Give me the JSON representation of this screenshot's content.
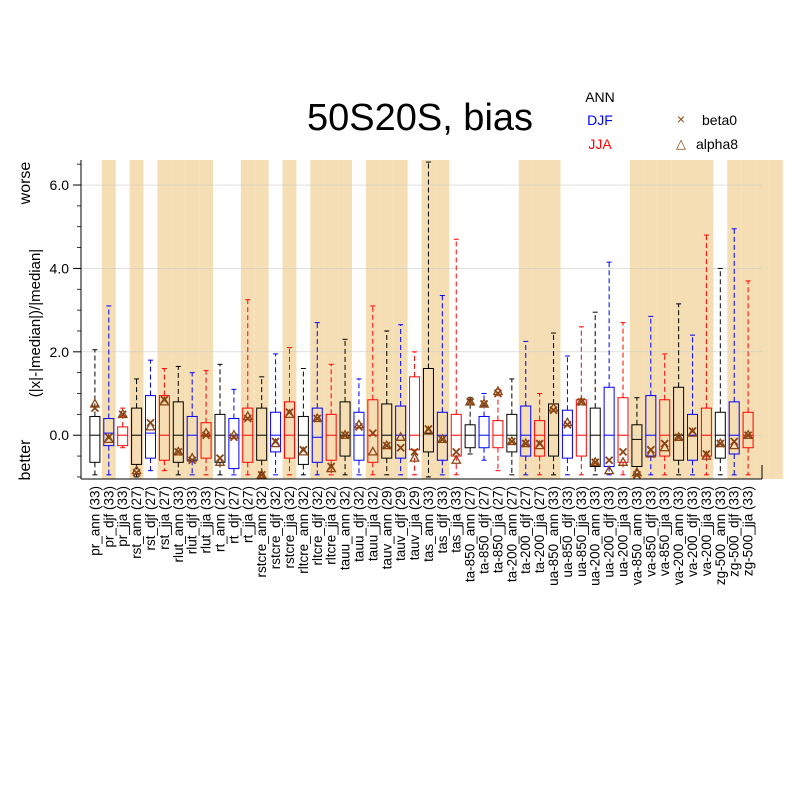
{
  "chart_data": {
    "type": "boxplot",
    "title": "50S20S, bias",
    "ylabel": "(|x|-|median|)/|median|",
    "ylabel_top": "worse",
    "ylabel_bottom": "better",
    "ylim": [
      -1.05,
      6.6
    ],
    "yticks": [
      0.0,
      2.0,
      4.0,
      6.0
    ],
    "ytick_labels": [
      "0.0",
      "2.0",
      "4.0",
      "6.0"
    ],
    "legend": {
      "seasons": [
        {
          "label": "ANN",
          "color": "#000000"
        },
        {
          "label": "DJF",
          "color": "#0000ff"
        },
        {
          "label": "JJA",
          "color": "#ff0000"
        }
      ],
      "markers": [
        {
          "label": "beta0",
          "symbol": "×",
          "color": "#8b4513"
        },
        {
          "label": "alpha8",
          "symbol": "△",
          "color": "#8b4513"
        }
      ]
    },
    "colors": {
      "ANN": "#000000",
      "DJF": "#0000ff",
      "JJA": "#ff0000",
      "shade": "#f5deb3",
      "marker": "#8b4513"
    },
    "shaded_categories": [
      1,
      3,
      5,
      6,
      7,
      8,
      11,
      12,
      14,
      16,
      17,
      18,
      20,
      21,
      22,
      24,
      25,
      31,
      32,
      33,
      39,
      40,
      41,
      42,
      43,
      44,
      46,
      47,
      48,
      49
    ],
    "categories": [
      "pr_ann (33)",
      "pr_djf (33)",
      "pr_jja (33)",
      "rst_ann (27)",
      "rst_djf (27)",
      "rst_jja (27)",
      "rlut_ann (33)",
      "rlut_djf (33)",
      "rlut_jja (33)",
      "rt_ann (27)",
      "rt_djf (27)",
      "rt_jja (27)",
      "rstcre_ann (32)",
      "rstcre_djf (32)",
      "rstcre_jja (32)",
      "rltcre_ann (32)",
      "rltcre_djf (32)",
      "rltcre_jja (32)",
      "tauu_ann (32)",
      "tauu_djf (32)",
      "tauu_jja (32)",
      "tauv_ann (29)",
      "tauv_djf (29)",
      "tauv_jja (29)",
      "tas_ann (33)",
      "tas_djf (33)",
      "tas_jja (33)",
      "ta-850_ann (27)",
      "ta-850_djf (27)",
      "ta-850_jja (27)",
      "ta-200_ann (27)",
      "ta-200_djf (27)",
      "ta-200_jja (27)",
      "ua-850_ann (33)",
      "ua-850_djf (33)",
      "ua-850_jja (33)",
      "ua-200_ann (33)",
      "ua-200_djf (33)",
      "ua-200_jja (33)",
      "va-850_ann (33)",
      "va-850_djf (33)",
      "va-850_jja (33)",
      "va-200_ann (33)",
      "va-200_djf (33)",
      "va-200_jja (33)",
      "zg-500_ann (33)",
      "zg-500_djf (33)",
      "zg-500_jja (33)"
    ],
    "series": [
      {
        "season": "ANN",
        "wlo": -0.95,
        "q1": -0.65,
        "med": 0.0,
        "q3": 0.45,
        "whi": 2.05,
        "beta0": 0.65,
        "alpha8": 0.75
      },
      {
        "season": "DJF",
        "wlo": -0.95,
        "q1": -0.25,
        "med": 0.05,
        "q3": 0.4,
        "whi": 3.1,
        "beta0": -0.05,
        "alpha8": -0.1
      },
      {
        "season": "JJA",
        "wlo": -0.3,
        "q1": -0.25,
        "med": 0.0,
        "q3": 0.2,
        "whi": 0.65,
        "beta0": 0.5,
        "alpha8": 0.5
      },
      {
        "season": "ANN",
        "wlo": -1.0,
        "q1": -0.7,
        "med": 0.0,
        "q3": 0.65,
        "whi": 1.35,
        "beta0": -0.9,
        "alpha8": -0.85
      },
      {
        "season": "DJF",
        "wlo": -0.85,
        "q1": -0.55,
        "med": 0.05,
        "q3": 0.95,
        "whi": 1.8,
        "beta0": 0.3,
        "alpha8": 0.2
      },
      {
        "season": "JJA",
        "wlo": -0.85,
        "q1": -0.6,
        "med": 0.0,
        "q3": 0.95,
        "whi": 1.6,
        "beta0": 0.85,
        "alpha8": 0.8
      },
      {
        "season": "ANN",
        "wlo": -0.95,
        "q1": -0.65,
        "med": 0.0,
        "q3": 0.8,
        "whi": 1.65,
        "beta0": -0.4,
        "alpha8": -0.4
      },
      {
        "season": "DJF",
        "wlo": -0.95,
        "q1": -0.6,
        "med": 0.0,
        "q3": 0.45,
        "whi": 1.5,
        "beta0": -0.6,
        "alpha8": -0.55
      },
      {
        "season": "JJA",
        "wlo": -0.95,
        "q1": -0.55,
        "med": 0.0,
        "q3": 0.3,
        "whi": 1.55,
        "beta0": 0.0,
        "alpha8": 0.05
      },
      {
        "season": "ANN",
        "wlo": -0.95,
        "q1": -0.65,
        "med": 0.0,
        "q3": 0.5,
        "whi": 1.7,
        "beta0": -0.55,
        "alpha8": -0.65
      },
      {
        "season": "DJF",
        "wlo": -0.95,
        "q1": -0.8,
        "med": 0.0,
        "q3": 0.4,
        "whi": 1.1,
        "beta0": -0.05,
        "alpha8": 0.0
      },
      {
        "season": "JJA",
        "wlo": -0.95,
        "q1": -0.65,
        "med": 0.0,
        "q3": 0.65,
        "whi": 3.25,
        "beta0": 0.4,
        "alpha8": 0.45
      },
      {
        "season": "ANN",
        "wlo": -0.95,
        "q1": -0.6,
        "med": 0.0,
        "q3": 0.65,
        "whi": 1.4,
        "beta0": -0.95,
        "alpha8": -0.95
      },
      {
        "season": "DJF",
        "wlo": -0.95,
        "q1": -0.4,
        "med": 0.0,
        "q3": 0.55,
        "whi": 1.95,
        "beta0": -0.15,
        "alpha8": -0.2
      },
      {
        "season": "JJA",
        "wlo": -0.95,
        "q1": -0.55,
        "med": 0.0,
        "q3": 0.8,
        "whi": 2.1,
        "beta0": 0.55,
        "alpha8": 0.5
      },
      {
        "season": "ANN",
        "wlo": -0.95,
        "q1": -0.7,
        "med": 0.0,
        "q3": 0.45,
        "whi": 1.6,
        "beta0": -0.35,
        "alpha8": -0.4
      },
      {
        "season": "DJF",
        "wlo": -0.95,
        "q1": -0.65,
        "med": -0.05,
        "q3": 0.65,
        "whi": 2.7,
        "beta0": 0.4,
        "alpha8": 0.4
      },
      {
        "season": "JJA",
        "wlo": -0.95,
        "q1": -0.6,
        "med": 0.0,
        "q3": 0.5,
        "whi": 1.7,
        "beta0": -0.75,
        "alpha8": -0.8
      },
      {
        "season": "ANN",
        "wlo": -0.95,
        "q1": -0.5,
        "med": 0.0,
        "q3": 0.8,
        "whi": 2.3,
        "beta0": 0.0,
        "alpha8": 0.0
      },
      {
        "season": "DJF",
        "wlo": -0.95,
        "q1": -0.6,
        "med": 0.0,
        "q3": 0.55,
        "whi": 1.35,
        "beta0": 0.2,
        "alpha8": 0.25
      },
      {
        "season": "JJA",
        "wlo": -0.95,
        "q1": -0.65,
        "med": 0.0,
        "q3": 0.85,
        "whi": 3.1,
        "beta0": 0.05,
        "alpha8": -0.4
      },
      {
        "season": "ANN",
        "wlo": -0.95,
        "q1": -0.55,
        "med": 0.0,
        "q3": 0.75,
        "whi": 2.5,
        "beta0": -0.25,
        "alpha8": -0.25
      },
      {
        "season": "DJF",
        "wlo": -0.95,
        "q1": -0.55,
        "med": 0.0,
        "q3": 0.7,
        "whi": 2.65,
        "beta0": -0.3,
        "alpha8": -0.05
      },
      {
        "season": "JJA",
        "wlo": -0.95,
        "q1": -0.35,
        "med": 0.0,
        "q3": 1.4,
        "whi": 2.0,
        "beta0": -0.4,
        "alpha8": -0.55
      },
      {
        "season": "ANN",
        "wlo": -1.0,
        "q1": -0.4,
        "med": 0.05,
        "q3": 1.6,
        "whi": 6.55,
        "beta0": 0.15,
        "alpha8": 0.1
      },
      {
        "season": "DJF",
        "wlo": -0.95,
        "q1": -0.6,
        "med": 0.0,
        "q3": 0.55,
        "whi": 3.35,
        "beta0": -0.1,
        "alpha8": -0.1
      },
      {
        "season": "JJA",
        "wlo": -0.95,
        "q1": -0.5,
        "med": 0.0,
        "q3": 0.5,
        "whi": 4.7,
        "beta0": -0.4,
        "alpha8": -0.6
      },
      {
        "season": "ANN",
        "wlo": -0.45,
        "q1": -0.3,
        "med": 0.0,
        "q3": 0.25,
        "whi": 0.9,
        "beta0": 0.8,
        "alpha8": 0.8
      },
      {
        "season": "DJF",
        "wlo": -0.6,
        "q1": -0.3,
        "med": 0.0,
        "q3": 0.45,
        "whi": 1.0,
        "beta0": 0.75,
        "alpha8": 0.75
      },
      {
        "season": "JJA",
        "wlo": -0.85,
        "q1": -0.3,
        "med": 0.0,
        "q3": 0.35,
        "whi": 1.1,
        "beta0": 1.0,
        "alpha8": 1.05
      },
      {
        "season": "ANN",
        "wlo": -0.95,
        "q1": -0.4,
        "med": 0.0,
        "q3": 0.5,
        "whi": 1.35,
        "beta0": -0.15,
        "alpha8": -0.15
      },
      {
        "season": "DJF",
        "wlo": -0.95,
        "q1": -0.5,
        "med": 0.0,
        "q3": 0.7,
        "whi": 2.25,
        "beta0": -0.2,
        "alpha8": -0.2
      },
      {
        "season": "JJA",
        "wlo": -0.95,
        "q1": -0.5,
        "med": 0.0,
        "q3": 0.35,
        "whi": 1.0,
        "beta0": -0.2,
        "alpha8": -0.25
      },
      {
        "season": "ANN",
        "wlo": -0.95,
        "q1": -0.5,
        "med": 0.0,
        "q3": 0.75,
        "whi": 2.45,
        "beta0": 0.6,
        "alpha8": 0.65
      },
      {
        "season": "DJF",
        "wlo": -0.95,
        "q1": -0.55,
        "med": 0.0,
        "q3": 0.6,
        "whi": 1.9,
        "beta0": 0.25,
        "alpha8": 0.3
      },
      {
        "season": "JJA",
        "wlo": -0.95,
        "q1": -0.5,
        "med": 0.0,
        "q3": 0.85,
        "whi": 2.6,
        "beta0": 0.8,
        "alpha8": 0.8
      },
      {
        "season": "ANN",
        "wlo": -0.95,
        "q1": -0.75,
        "med": 0.0,
        "q3": 0.65,
        "whi": 2.95,
        "beta0": -0.65,
        "alpha8": -0.65
      },
      {
        "season": "DJF",
        "wlo": -0.95,
        "q1": -0.75,
        "med": 0.0,
        "q3": 1.15,
        "whi": 4.15,
        "beta0": -0.6,
        "alpha8": -0.85
      },
      {
        "season": "JJA",
        "wlo": -0.95,
        "q1": -0.65,
        "med": 0.0,
        "q3": 0.9,
        "whi": 2.7,
        "beta0": -0.4,
        "alpha8": -0.65
      },
      {
        "season": "ANN",
        "wlo": -0.95,
        "q1": -0.75,
        "med": -0.1,
        "q3": 0.25,
        "whi": 0.9,
        "beta0": -0.95,
        "alpha8": -0.9
      },
      {
        "season": "DJF",
        "wlo": -0.95,
        "q1": -0.5,
        "med": 0.0,
        "q3": 0.95,
        "whi": 2.85,
        "beta0": -0.35,
        "alpha8": -0.45
      },
      {
        "season": "JJA",
        "wlo": -0.95,
        "q1": -0.5,
        "med": 0.0,
        "q3": 0.85,
        "whi": 1.95,
        "beta0": -0.2,
        "alpha8": -0.3
      },
      {
        "season": "ANN",
        "wlo": -0.95,
        "q1": -0.6,
        "med": 0.0,
        "q3": 1.15,
        "whi": 3.15,
        "beta0": -0.05,
        "alpha8": -0.05
      },
      {
        "season": "DJF",
        "wlo": -0.95,
        "q1": -0.6,
        "med": 0.0,
        "q3": 0.5,
        "whi": 2.4,
        "beta0": 0.1,
        "alpha8": 0.05
      },
      {
        "season": "JJA",
        "wlo": -0.95,
        "q1": -0.5,
        "med": 0.0,
        "q3": 0.65,
        "whi": 4.8,
        "beta0": -0.45,
        "alpha8": -0.5
      },
      {
        "season": "ANN",
        "wlo": -0.95,
        "q1": -0.55,
        "med": 0.0,
        "q3": 0.55,
        "whi": 4.0,
        "beta0": -0.2,
        "alpha8": -0.2
      },
      {
        "season": "DJF",
        "wlo": -0.95,
        "q1": -0.45,
        "med": 0.0,
        "q3": 0.8,
        "whi": 4.95,
        "beta0": -0.15,
        "alpha8": -0.25
      },
      {
        "season": "JJA",
        "wlo": -0.95,
        "q1": -0.3,
        "med": 0.0,
        "q3": 0.55,
        "whi": 3.7,
        "beta0": 0.0,
        "alpha8": 0.0
      }
    ]
  }
}
